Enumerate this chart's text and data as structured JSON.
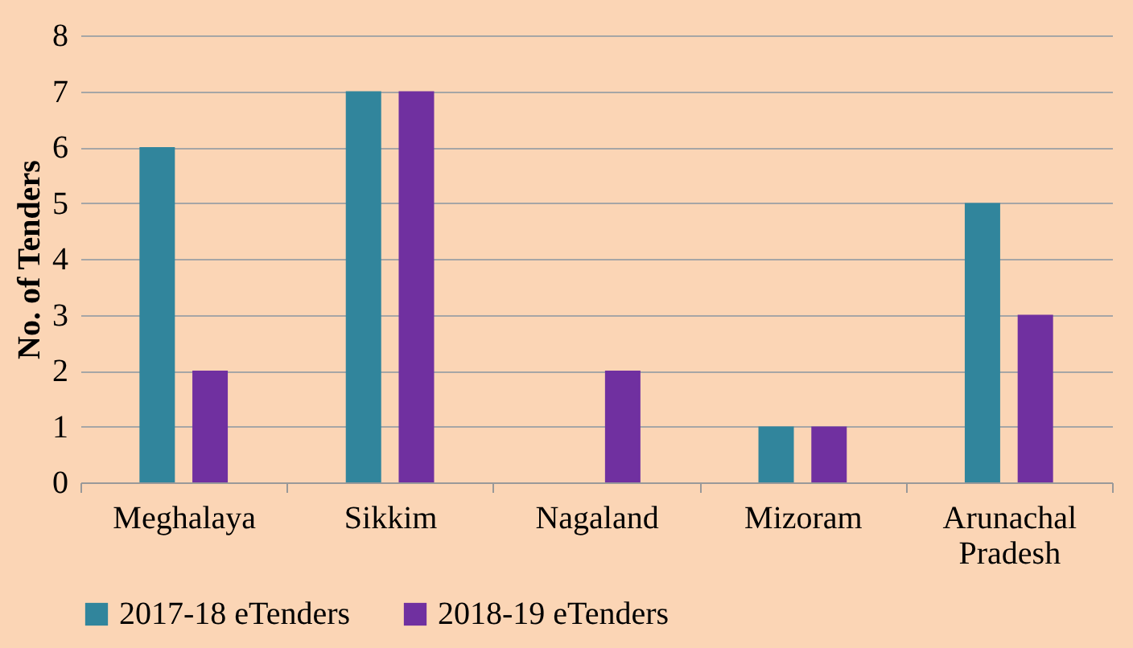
{
  "chart_data": {
    "type": "bar",
    "ylabel": "No. of Tenders",
    "categories": [
      "Meghalaya",
      "Sikkim",
      "Nagaland",
      "Mizoram",
      "Arunachal Pradesh"
    ],
    "series": [
      {
        "name": "2017-18 eTenders",
        "color": "#31859c",
        "values": [
          6,
          7,
          0,
          1,
          5
        ]
      },
      {
        "name": "2018-19 eTenders",
        "color": "#7030a0",
        "values": [
          2,
          7,
          2,
          1,
          3
        ]
      }
    ],
    "ylim": [
      0,
      8
    ],
    "yticks": [
      0,
      1,
      2,
      3,
      4,
      5,
      6,
      7,
      8
    ],
    "grid": "y",
    "legend": "bottom"
  }
}
